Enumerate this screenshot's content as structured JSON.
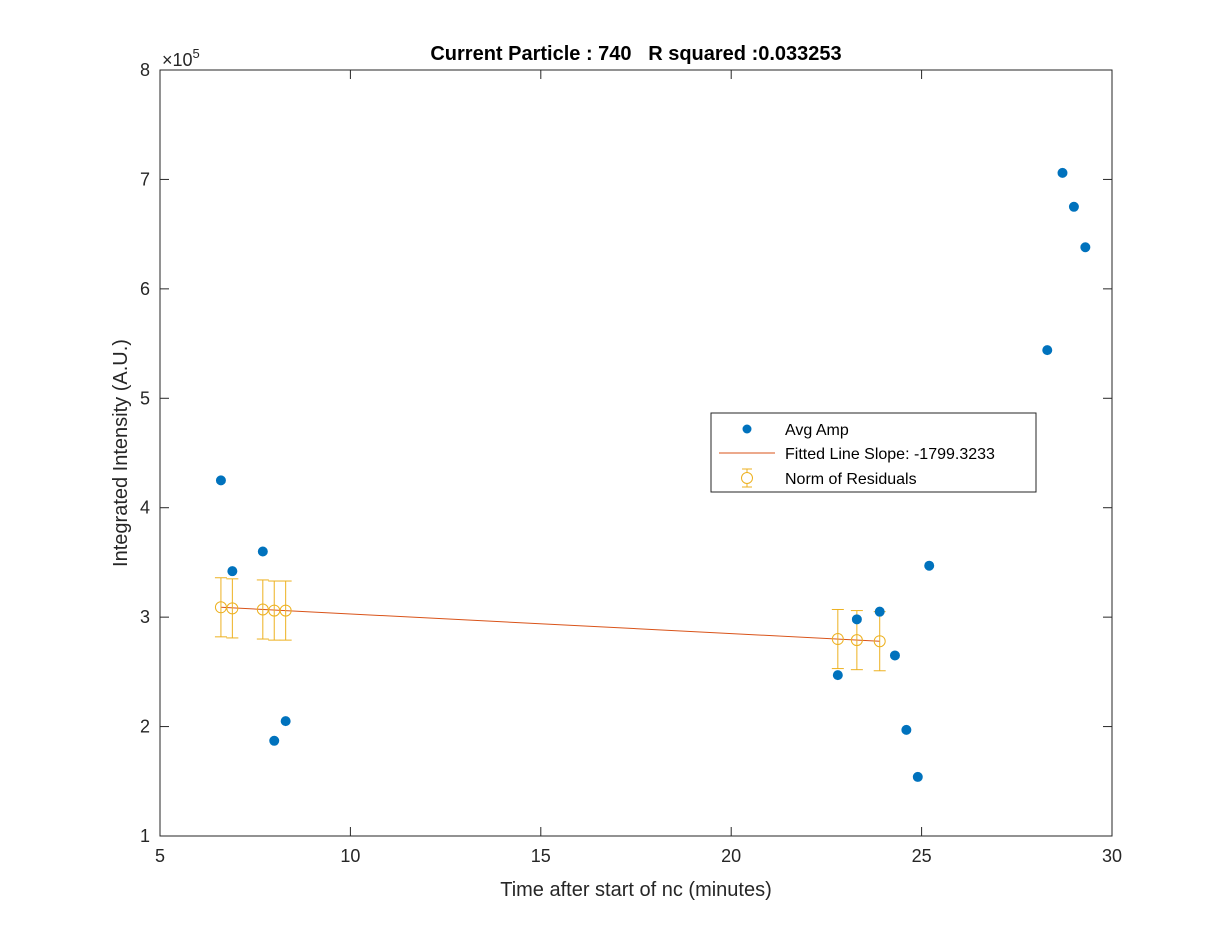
{
  "chart_data": {
    "type": "scatter",
    "title": "Current Particle : 740   R squared :0.033253",
    "xlabel": "Time after start of nc (minutes)",
    "ylabel": "Integrated Intensity (A.U.)",
    "xlim": [
      5,
      30
    ],
    "ylim": [
      100000,
      800000
    ],
    "xticks": [
      5,
      10,
      15,
      20,
      25,
      30
    ],
    "xtick_labels": [
      "5",
      "10",
      "15",
      "20",
      "25",
      "30"
    ],
    "yticks": [
      100000,
      200000,
      300000,
      400000,
      500000,
      600000,
      700000,
      800000
    ],
    "ytick_labels": [
      "1",
      "2",
      "3",
      "4",
      "5",
      "6",
      "7",
      "8"
    ],
    "y_exponent_base": "×10",
    "y_exponent_power": "5",
    "grid": false,
    "legend_position": "center-right",
    "colors": {
      "avg_amp": "#0072BD",
      "fitted_line": "#D95319",
      "residuals": "#EDB120",
      "axes": "#262626"
    },
    "series": [
      {
        "name": "Avg Amp",
        "kind": "scatter",
        "x": [
          6.6,
          6.9,
          7.7,
          8.0,
          8.3,
          22.8,
          23.3,
          23.9,
          24.3,
          24.6,
          24.9,
          25.2,
          28.3,
          28.7,
          29.0,
          29.3
        ],
        "y": [
          425000,
          342000,
          360000,
          187000,
          205000,
          247000,
          298000,
          305000,
          265000,
          197000,
          154000,
          347000,
          544000,
          706000,
          675000,
          638000
        ]
      },
      {
        "name": "Fitted Line Slope: -1799.3233",
        "kind": "line",
        "x": [
          6.6,
          23.9
        ],
        "y": [
          309000,
          278000
        ]
      },
      {
        "name": "Norm of Residuals",
        "kind": "errorbar",
        "x": [
          6.6,
          6.9,
          7.7,
          8.0,
          8.3,
          22.8,
          23.3,
          23.9
        ],
        "y": [
          309000,
          308000,
          307000,
          306000,
          306000,
          280000,
          279000,
          278000
        ],
        "error": [
          27000,
          27000,
          27000,
          27000,
          27000,
          27000,
          27000,
          27000
        ]
      }
    ]
  }
}
